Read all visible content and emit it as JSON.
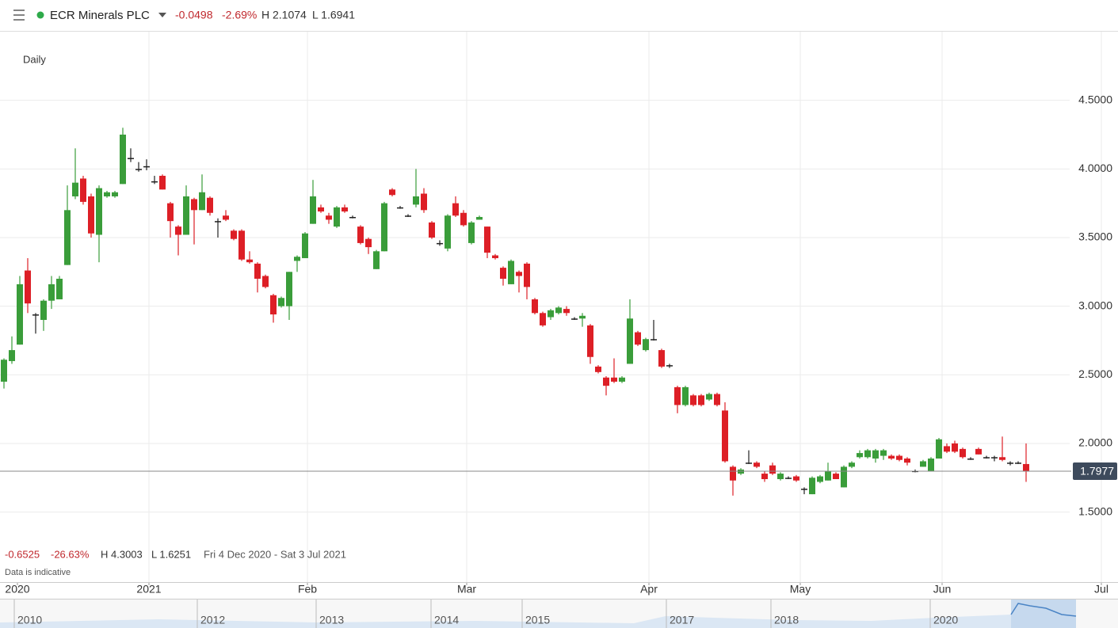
{
  "chart_data": {
    "type": "candlestick",
    "title": "ECR Minerals PLC",
    "header": {
      "change": "-0.0498",
      "change_pct": "-2.69%",
      "high": "H 2.1074",
      "low": "L 1.6941"
    },
    "interval": "Daily",
    "period": {
      "change": "-0.6525",
      "change_pct": "-26.63%",
      "high": "H 4.3003",
      "low": "L 1.6251",
      "range": "Fri 4 Dec 2020 - Sat 3 Jul 2021"
    },
    "note": "Data is indicative",
    "last_price": 1.7977,
    "up_color": "#3a9d3a",
    "down_color": "#dd1f26",
    "grid": true,
    "ylim": [
      0.99,
      5.0
    ],
    "yticks": [
      {
        "value": 1.5,
        "label": "1.5000"
      },
      {
        "value": 2.0,
        "label": "2.0000"
      },
      {
        "value": 2.5,
        "label": "2.5000"
      },
      {
        "value": 3.0,
        "label": "3.0000"
      },
      {
        "value": 3.5,
        "label": "3.5000"
      },
      {
        "value": 4.0,
        "label": "4.0000"
      },
      {
        "value": 4.5,
        "label": "4.5000"
      }
    ],
    "x_labels": [
      {
        "label": "2020",
        "at": 1.7
      },
      {
        "label": "2021",
        "at": 18.3
      },
      {
        "label": "Feb",
        "at": 38.3
      },
      {
        "label": "Mar",
        "at": 58.4
      },
      {
        "label": "Apr",
        "at": 81.4
      },
      {
        "label": "May",
        "at": 100.5
      },
      {
        "label": "Jun",
        "at": 118.4
      },
      {
        "label": "Jul",
        "at": 138.5
      }
    ],
    "navigator_labels": [
      "2010",
      "2012",
      "2013",
      "2014",
      "2015",
      "2017",
      "2018",
      "2020"
    ],
    "candles": [
      [
        2.45,
        2.62,
        2.4,
        2.61
      ],
      [
        2.6,
        2.78,
        2.58,
        2.68
      ],
      [
        2.72,
        3.22,
        2.72,
        3.16
      ],
      [
        3.26,
        3.35,
        2.95,
        3.02
      ],
      [
        2.94,
        2.95,
        2.8,
        2.94
      ],
      [
        2.9,
        3.05,
        2.82,
        3.04
      ],
      [
        3.04,
        3.22,
        2.98,
        3.16
      ],
      [
        3.05,
        3.22,
        3.05,
        3.2
      ],
      [
        3.3,
        3.88,
        3.3,
        3.7
      ],
      [
        3.8,
        4.15,
        3.78,
        3.9
      ],
      [
        3.93,
        3.95,
        3.74,
        3.76
      ],
      [
        3.8,
        3.82,
        3.5,
        3.53
      ],
      [
        3.52,
        3.88,
        3.32,
        3.86
      ],
      [
        3.8,
        3.84,
        3.79,
        3.83
      ],
      [
        3.8,
        3.84,
        3.79,
        3.83
      ],
      [
        3.89,
        4.3,
        3.89,
        4.25
      ],
      [
        4.08,
        4.15,
        4.05,
        4.08
      ],
      [
        4.0,
        4.05,
        3.98,
        4.0
      ],
      [
        4.02,
        4.07,
        3.99,
        4.02
      ],
      [
        3.91,
        3.95,
        3.89,
        3.91
      ],
      [
        3.95,
        3.96,
        3.85,
        3.85
      ],
      [
        3.75,
        3.76,
        3.5,
        3.62
      ],
      [
        3.58,
        3.59,
        3.37,
        3.52
      ],
      [
        3.52,
        3.88,
        3.52,
        3.8
      ],
      [
        3.78,
        3.79,
        3.45,
        3.7
      ],
      [
        3.7,
        3.96,
        3.7,
        3.83
      ],
      [
        3.79,
        3.8,
        3.66,
        3.68
      ],
      [
        3.62,
        3.64,
        3.5,
        3.62
      ],
      [
        3.66,
        3.7,
        3.62,
        3.63
      ],
      [
        3.55,
        3.56,
        3.48,
        3.49
      ],
      [
        3.55,
        3.56,
        3.33,
        3.34
      ],
      [
        3.34,
        3.4,
        3.31,
        3.32
      ],
      [
        3.31,
        3.32,
        3.1,
        3.2
      ],
      [
        3.22,
        3.23,
        3.13,
        3.14
      ],
      [
        3.08,
        3.09,
        2.88,
        2.94
      ],
      [
        3.0,
        3.07,
        2.99,
        3.06
      ],
      [
        3.0,
        3.25,
        2.9,
        3.25
      ],
      [
        3.33,
        3.37,
        3.25,
        3.36
      ],
      [
        3.35,
        3.54,
        3.35,
        3.53
      ],
      [
        3.6,
        3.92,
        3.6,
        3.8
      ],
      [
        3.72,
        3.74,
        3.68,
        3.69
      ],
      [
        3.66,
        3.68,
        3.6,
        3.63
      ],
      [
        3.58,
        3.73,
        3.57,
        3.72
      ],
      [
        3.72,
        3.74,
        3.68,
        3.69
      ],
      [
        3.65,
        3.66,
        3.64,
        3.65
      ],
      [
        3.58,
        3.59,
        3.45,
        3.46
      ],
      [
        3.49,
        3.5,
        3.38,
        3.43
      ],
      [
        3.27,
        3.41,
        3.27,
        3.4
      ],
      [
        3.4,
        3.76,
        3.4,
        3.75
      ],
      [
        3.85,
        3.86,
        3.8,
        3.81
      ],
      [
        3.72,
        3.73,
        3.71,
        3.72
      ],
      [
        3.66,
        3.67,
        3.65,
        3.66
      ],
      [
        3.74,
        4.0,
        3.72,
        3.8
      ],
      [
        3.82,
        3.86,
        3.68,
        3.7
      ],
      [
        3.61,
        3.62,
        3.49,
        3.5
      ],
      [
        3.46,
        3.48,
        3.44,
        3.46
      ],
      [
        3.42,
        3.67,
        3.4,
        3.66
      ],
      [
        3.75,
        3.8,
        3.65,
        3.66
      ],
      [
        3.68,
        3.7,
        3.58,
        3.59
      ],
      [
        3.46,
        3.62,
        3.45,
        3.61
      ],
      [
        3.63,
        3.66,
        3.63,
        3.65
      ],
      [
        3.58,
        3.58,
        3.35,
        3.39
      ],
      [
        3.37,
        3.38,
        3.34,
        3.35
      ],
      [
        3.28,
        3.29,
        3.15,
        3.2
      ],
      [
        3.16,
        3.34,
        3.16,
        3.33
      ],
      [
        3.25,
        3.26,
        3.1,
        3.22
      ],
      [
        3.31,
        3.32,
        3.05,
        3.14
      ],
      [
        3.05,
        3.06,
        2.94,
        2.95
      ],
      [
        2.95,
        2.96,
        2.85,
        2.86
      ],
      [
        2.92,
        2.98,
        2.9,
        2.97
      ],
      [
        2.95,
        3.0,
        2.94,
        2.99
      ],
      [
        2.98,
        3.0,
        2.93,
        2.95
      ],
      [
        2.91,
        2.92,
        2.9,
        2.91
      ],
      [
        2.91,
        2.95,
        2.85,
        2.93
      ],
      [
        2.86,
        2.87,
        2.58,
        2.63
      ],
      [
        2.56,
        2.57,
        2.51,
        2.52
      ],
      [
        2.48,
        2.49,
        2.35,
        2.42
      ],
      [
        2.48,
        2.62,
        2.44,
        2.45
      ],
      [
        2.45,
        2.49,
        2.44,
        2.48
      ],
      [
        2.58,
        3.05,
        2.58,
        2.91
      ],
      [
        2.81,
        2.82,
        2.71,
        2.72
      ],
      [
        2.68,
        2.77,
        2.67,
        2.76
      ],
      [
        2.76,
        2.9,
        2.75,
        2.76
      ],
      [
        2.68,
        2.69,
        2.55,
        2.56
      ],
      [
        2.57,
        2.58,
        2.55,
        2.57
      ],
      [
        2.41,
        2.42,
        2.22,
        2.28
      ],
      [
        2.28,
        2.42,
        2.27,
        2.41
      ],
      [
        2.35,
        2.36,
        2.27,
        2.28
      ],
      [
        2.35,
        2.36,
        2.27,
        2.28
      ],
      [
        2.32,
        2.37,
        2.31,
        2.36
      ],
      [
        2.36,
        2.37,
        2.27,
        2.28
      ],
      [
        2.24,
        2.3,
        1.86,
        1.87
      ],
      [
        1.83,
        1.84,
        1.62,
        1.73
      ],
      [
        1.78,
        1.82,
        1.77,
        1.81
      ],
      [
        1.86,
        1.95,
        1.85,
        1.86
      ],
      [
        1.86,
        1.87,
        1.82,
        1.83
      ],
      [
        1.78,
        1.8,
        1.72,
        1.74
      ],
      [
        1.84,
        1.86,
        1.77,
        1.78
      ],
      [
        1.74,
        1.79,
        1.73,
        1.78
      ],
      [
        1.75,
        1.76,
        1.74,
        1.75
      ],
      [
        1.76,
        1.77,
        1.72,
        1.73
      ],
      [
        1.67,
        1.68,
        1.63,
        1.67
      ],
      [
        1.63,
        1.76,
        1.63,
        1.75
      ],
      [
        1.72,
        1.77,
        1.71,
        1.76
      ],
      [
        1.73,
        1.86,
        1.73,
        1.8
      ],
      [
        1.78,
        1.79,
        1.74,
        1.74
      ],
      [
        1.68,
        1.84,
        1.68,
        1.83
      ],
      [
        1.83,
        1.87,
        1.82,
        1.86
      ],
      [
        1.9,
        1.95,
        1.89,
        1.93
      ],
      [
        1.9,
        1.96,
        1.89,
        1.95
      ],
      [
        1.89,
        1.96,
        1.86,
        1.95
      ],
      [
        1.91,
        1.96,
        1.88,
        1.95
      ],
      [
        1.91,
        1.92,
        1.88,
        1.89
      ],
      [
        1.91,
        1.92,
        1.87,
        1.88
      ],
      [
        1.89,
        1.9,
        1.84,
        1.86
      ],
      [
        1.8,
        1.81,
        1.79,
        1.8
      ],
      [
        1.83,
        1.88,
        1.83,
        1.87
      ],
      [
        1.8,
        1.9,
        1.8,
        1.89
      ],
      [
        1.89,
        2.04,
        1.89,
        2.03
      ],
      [
        1.98,
        2.0,
        1.93,
        1.94
      ],
      [
        2.0,
        2.02,
        1.93,
        1.94
      ],
      [
        1.96,
        1.97,
        1.89,
        1.9
      ],
      [
        1.89,
        1.9,
        1.88,
        1.89
      ],
      [
        1.96,
        1.97,
        1.92,
        1.92
      ],
      [
        1.9,
        1.91,
        1.89,
        1.9
      ],
      [
        1.9,
        1.91,
        1.87,
        1.9
      ],
      [
        1.9,
        2.05,
        1.87,
        1.88
      ],
      [
        1.86,
        1.87,
        1.84,
        1.86
      ],
      [
        1.86,
        1.87,
        1.85,
        1.86
      ],
      [
        1.85,
        2.0,
        1.72,
        1.8
      ]
    ]
  }
}
